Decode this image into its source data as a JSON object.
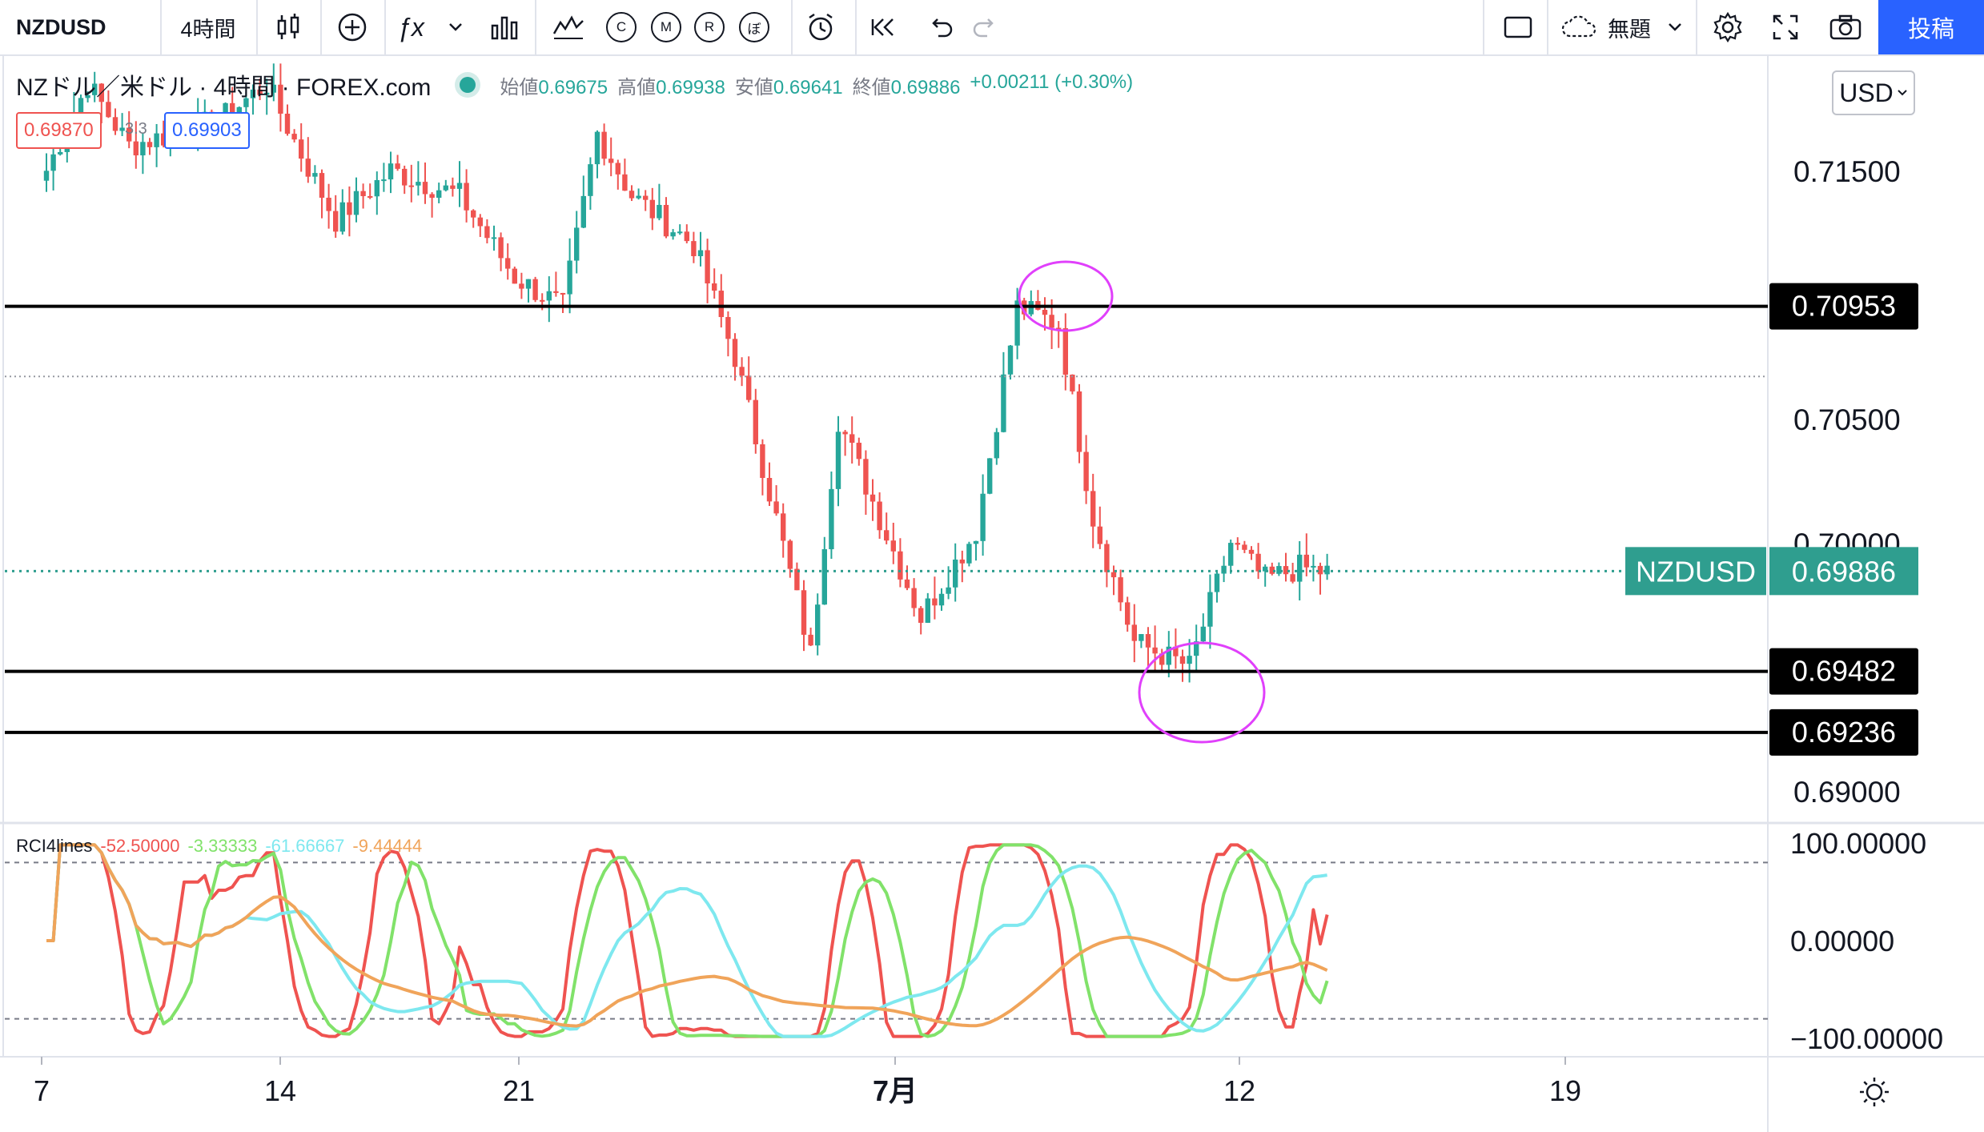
{
  "toolbar": {
    "symbol": "NZDUSD",
    "interval": "4時間",
    "indicator_mini_labels": [
      "C",
      "M",
      "R",
      "ぼ"
    ],
    "layout_name": "無題",
    "post_label": "投稿",
    "icons": [
      "candles-icon",
      "plus-circle-icon",
      "fx-icon",
      "chevron-down-icon",
      "bar-chart-icon",
      "indicator-templates-icon",
      "alarm-clock-icon",
      "rewind-icon",
      "undo-icon",
      "redo-icon",
      "rectangle-icon",
      "cloud-icon",
      "gear-icon",
      "fullscreen-icon",
      "camera-icon"
    ]
  },
  "legend": {
    "title": "NZドル／米ドル · 4時間 · FOREX.com",
    "open_label": "始値",
    "open": "0.69675",
    "high_label": "高値",
    "high": "0.69938",
    "low_label": "安値",
    "low": "0.69641",
    "close_label": "終値",
    "close": "0.69886",
    "change": "+0.00211 (+0.30%)",
    "sell_price": "0.69870",
    "spread": "3.3",
    "buy_price": "0.69903"
  },
  "currency_selector": "USD",
  "colors": {
    "up": "#26a69a",
    "down": "#ef5350",
    "line": "#000000",
    "circle": "#e040fb",
    "current": "#2f9e8f",
    "rci1": "#ef5350",
    "rci2": "#81e26a",
    "rci3": "#7ee8ef",
    "rci4": "#f0a45a"
  },
  "chart_data": [
    {
      "type": "candlestick",
      "title": "NZドル／米ドル · 4時間 · FOREX.com",
      "x_tick_labels": [
        "7",
        "14",
        "21",
        "7月",
        "12",
        "19"
      ],
      "y_tick_labels": [
        "0.71500",
        "0.70500",
        "0.70000",
        "0.69000"
      ],
      "y_ticks": [
        0.715,
        0.705,
        0.7,
        0.69
      ],
      "ylim": [
        0.6888,
        0.7186
      ],
      "horizontal_lines": [
        {
          "value": 0.70953,
          "label": "0.70953"
        },
        {
          "value": 0.69482,
          "label": "0.69482"
        },
        {
          "value": 0.69236,
          "label": "0.69236"
        }
      ],
      "current_price": {
        "symbol": "NZDUSD",
        "value": 0.69886,
        "label": "0.69886"
      },
      "dotted_line_value": 0.7067,
      "highlight_circles": [
        {
          "x_index": 146,
          "value": 0.7095
        },
        {
          "x_index": 163,
          "value": 0.6932
        }
      ],
      "key_points": [
        [
          0,
          0.715
        ],
        [
          6,
          0.7185
        ],
        [
          12,
          0.716
        ],
        [
          25,
          0.717
        ],
        [
          32,
          0.7185
        ],
        [
          36,
          0.7162
        ],
        [
          42,
          0.713
        ],
        [
          50,
          0.715
        ],
        [
          60,
          0.714
        ],
        [
          68,
          0.7107
        ],
        [
          75,
          0.7095
        ],
        [
          80,
          0.7165
        ],
        [
          85,
          0.714
        ],
        [
          94,
          0.712
        ],
        [
          100,
          0.7075
        ],
        [
          111,
          0.6955
        ],
        [
          115,
          0.705
        ],
        [
          127,
          0.697
        ],
        [
          135,
          0.7005
        ],
        [
          141,
          0.7095
        ],
        [
          147,
          0.7088
        ],
        [
          152,
          0.701
        ],
        [
          158,
          0.696
        ],
        [
          166,
          0.695
        ],
        [
          172,
          0.7
        ],
        [
          177,
          0.6985
        ],
        [
          182,
          0.699
        ],
        [
          186,
          0.6988
        ]
      ],
      "x_tick_indices": [
        -31,
        3,
        36,
        87,
        135,
        181
      ]
    },
    {
      "type": "line",
      "title": "RCI4lines",
      "series": [
        {
          "name": "",
          "values_label": "-52.50000",
          "key": "rci1"
        },
        {
          "name": "",
          "values_label": "-3.33333",
          "key": "rci2"
        },
        {
          "name": "",
          "values_label": "-61.66667",
          "key": "rci3"
        },
        {
          "name": "",
          "values_label": "-9.44444",
          "key": "rci4"
        }
      ],
      "y_tick_labels": [
        "100.00000",
        "0.00000",
        "−100.00000"
      ],
      "ylim": [
        -115,
        115
      ],
      "dashed_levels": [
        80,
        -80
      ]
    }
  ]
}
